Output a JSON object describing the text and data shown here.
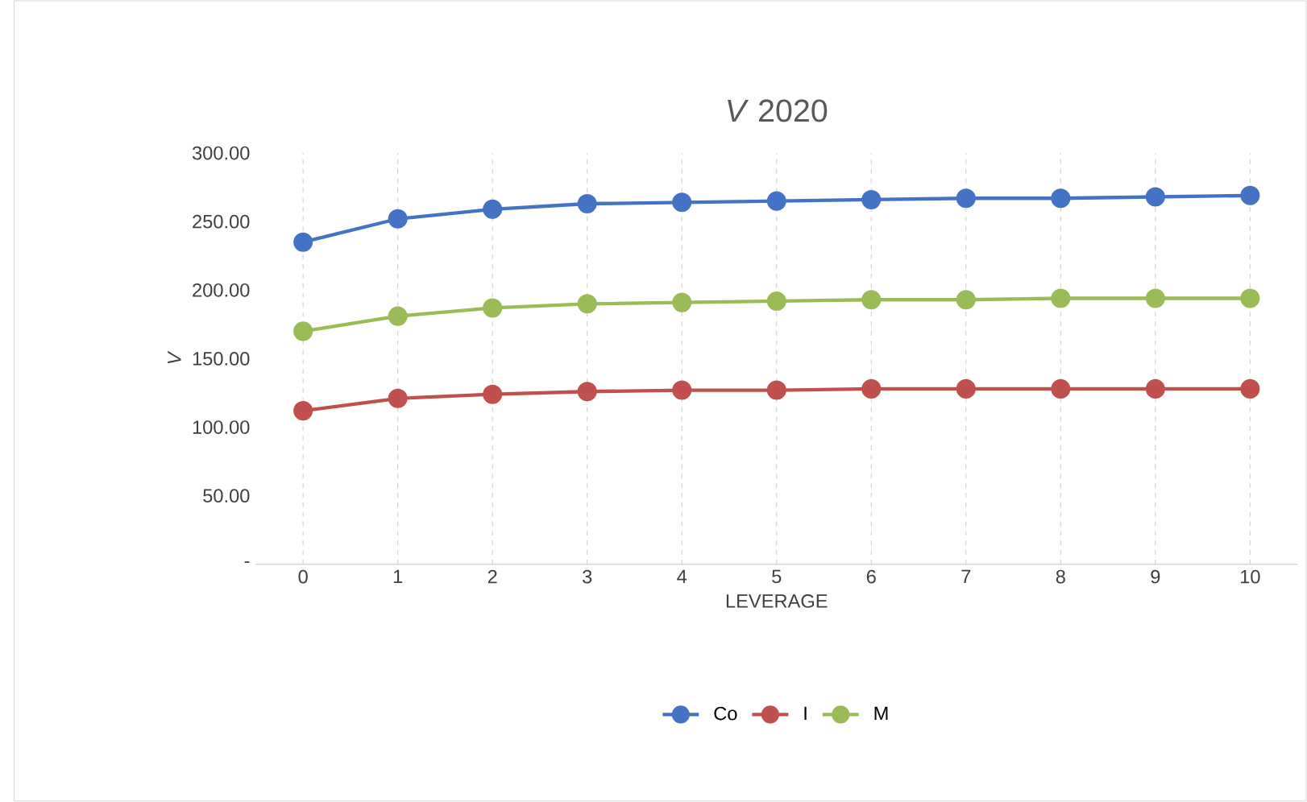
{
  "chart_data": {
    "type": "line",
    "title": "*V* 2020",
    "xlabel": "LEVERAGE",
    "ylabel": "V",
    "categories": [
      "0",
      "1",
      "2",
      "3",
      "4",
      "5",
      "6",
      "7",
      "8",
      "9",
      "10"
    ],
    "series": [
      {
        "name": "Co",
        "color": "#4472c4",
        "values": [
          235,
          252,
          259,
          263,
          264,
          265,
          266,
          267,
          267,
          268,
          269
        ]
      },
      {
        "name": "I",
        "color": "#c0504d",
        "values": [
          112,
          121,
          124,
          126,
          127,
          127,
          128,
          128,
          128,
          128,
          128
        ]
      },
      {
        "name": "M",
        "color": "#9bbb59",
        "values": [
          170,
          181,
          187,
          190,
          191,
          192,
          193,
          193,
          194,
          194,
          194
        ]
      }
    ],
    "ylim": [
      0,
      300
    ],
    "yticks": [
      {
        "value": 0,
        "label": "-"
      },
      {
        "value": 50,
        "label": "50.00"
      },
      {
        "value": 100,
        "label": "100.00"
      },
      {
        "value": 150,
        "label": "150.00"
      },
      {
        "value": 200,
        "label": "200.00"
      },
      {
        "value": 250,
        "label": "250.00"
      },
      {
        "value": 300,
        "label": "300.00"
      }
    ],
    "grid": "x",
    "legend": "bottom",
    "marker": "circle",
    "line_style": "solid"
  }
}
